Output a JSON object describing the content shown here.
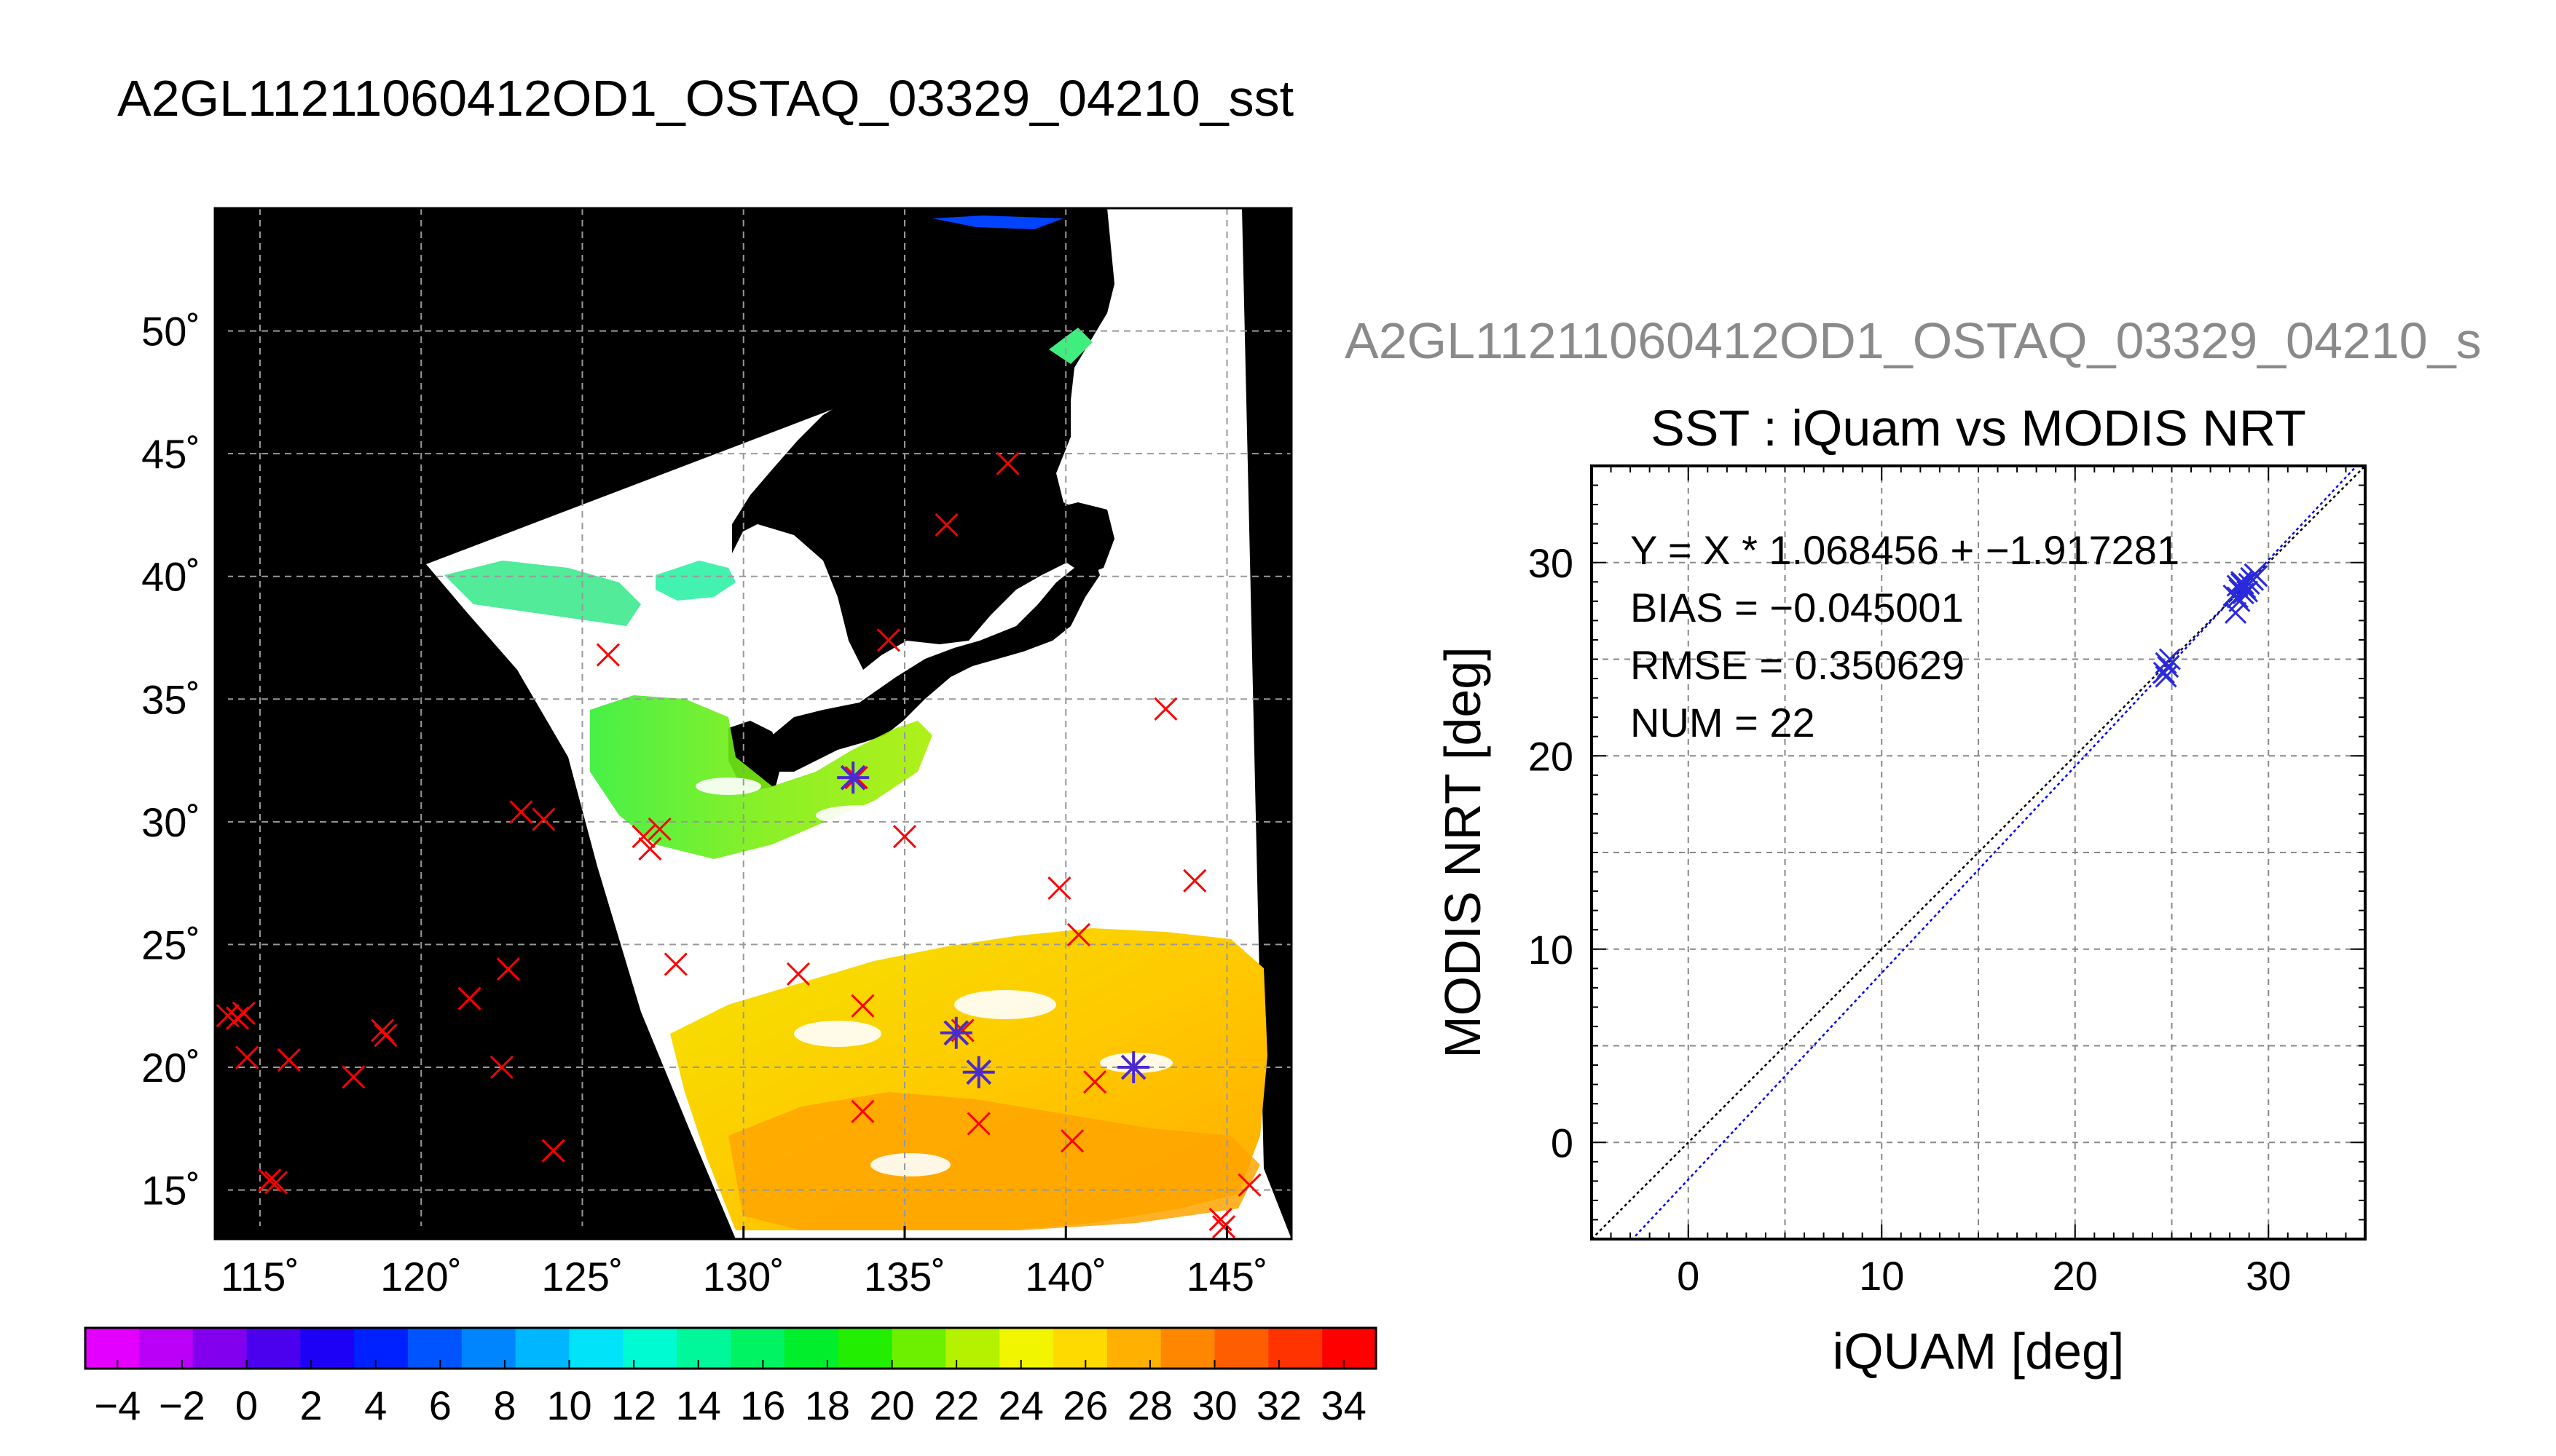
{
  "page": {
    "title": "A2GL11211060412OD1_OSTAQ_03329_04210_sst",
    "scatter_header": "A2GL11211060412OD1_OSTAQ_03329_04210_s"
  },
  "map": {
    "lon_tick_labels": [
      "115˚",
      "120˚",
      "125˚",
      "130˚",
      "135˚",
      "140˚",
      "145˚"
    ],
    "lat_tick_labels": [
      "50˚",
      "45˚",
      "40˚",
      "35˚",
      "30˚",
      "25˚",
      "20˚",
      "15˚"
    ],
    "lon_ticks": [
      115,
      120,
      125,
      130,
      135,
      140,
      145
    ],
    "lat_ticks": [
      50,
      45,
      40,
      35,
      30,
      25,
      20,
      15
    ],
    "lon_range": [
      113.6,
      147.0
    ],
    "lat_range": [
      13.0,
      55.0
    ],
    "colors": {
      "land": "#000000",
      "cloud": "#ffffff",
      "insitu_marker": "#ff0000",
      "matchup_marker": "#4b2bd0"
    },
    "insitu_points": [
      [
        138.2,
        44.6
      ],
      [
        136.3,
        42.1
      ],
      [
        134.5,
        37.4
      ],
      [
        125.8,
        36.8
      ],
      [
        143.1,
        34.6
      ],
      [
        133.5,
        31.8
      ],
      [
        123.1,
        30.4
      ],
      [
        123.8,
        30.1
      ],
      [
        127.4,
        29.7
      ],
      [
        126.9,
        29.4
      ],
      [
        127.1,
        28.9
      ],
      [
        135.0,
        29.4
      ],
      [
        144.0,
        27.6
      ],
      [
        139.8,
        27.3
      ],
      [
        140.4,
        25.4
      ],
      [
        127.9,
        24.2
      ],
      [
        131.7,
        23.8
      ],
      [
        122.7,
        24.0
      ],
      [
        121.5,
        22.8
      ],
      [
        133.7,
        22.5
      ],
      [
        114.0,
        22.1
      ],
      [
        114.3,
        22.0
      ],
      [
        114.5,
        22.2
      ],
      [
        118.9,
        21.3
      ],
      [
        118.8,
        21.5
      ],
      [
        114.6,
        20.4
      ],
      [
        115.9,
        20.3
      ],
      [
        117.9,
        19.6
      ],
      [
        122.5,
        20.0
      ],
      [
        136.8,
        21.5
      ],
      [
        140.9,
        19.4
      ],
      [
        142.1,
        20.0
      ],
      [
        133.7,
        18.2
      ],
      [
        137.3,
        17.7
      ],
      [
        140.2,
        17.0
      ],
      [
        124.1,
        16.6
      ],
      [
        115.3,
        15.4
      ],
      [
        115.5,
        15.3
      ],
      [
        145.7,
        15.2
      ],
      [
        144.8,
        13.8
      ],
      [
        144.9,
        13.5
      ]
    ],
    "matchup_points": [
      [
        133.4,
        31.8
      ],
      [
        136.6,
        21.4
      ],
      [
        137.3,
        19.8
      ],
      [
        142.1,
        20.0
      ]
    ]
  },
  "colorbar": {
    "tick_labels": [
      "−4",
      "−2",
      "0",
      "2",
      "4",
      "6",
      "8",
      "10",
      "12",
      "14",
      "16",
      "18",
      "20",
      "22",
      "24",
      "26",
      "28",
      "30",
      "32",
      "34"
    ],
    "range": [
      -5,
      35
    ],
    "colors": [
      "#e400ff",
      "#bb00f7",
      "#8200ee",
      "#4b00ee",
      "#1d00f6",
      "#0021ff",
      "#0054ff",
      "#0085ff",
      "#00b6ff",
      "#00e3f9",
      "#00fbd2",
      "#00f79a",
      "#00f363",
      "#00ee2c",
      "#21ee00",
      "#6cf000",
      "#b4f200",
      "#f2f500",
      "#ffda00",
      "#ffb000",
      "#ff8700",
      "#ff5e00",
      "#ff3300",
      "#ff0000"
    ]
  },
  "chart_data": {
    "type": "scatter",
    "title": "SST : iQuam vs MODIS NRT",
    "xlabel": "iQUAM [deg]",
    "ylabel": "MODIS NRT [deg]",
    "xlim": [
      -5,
      35
    ],
    "ylim": [
      -5,
      35
    ],
    "x_ticks": [
      0,
      10,
      20,
      30
    ],
    "y_ticks": [
      0,
      10,
      20,
      30
    ],
    "grid": true,
    "annotations": [
      "Y = X * 1.068456 + −1.917281",
      "BIAS = −0.045001",
      "RMSE = 0.350629",
      "NUM = 22"
    ],
    "regression": {
      "slope": 1.068456,
      "intercept": -1.917281
    },
    "colors": {
      "points": "#2a2adc",
      "fit_line": "#0000ff",
      "one_to_one": "#000000"
    },
    "points": [
      [
        24.7,
        24.8
      ],
      [
        24.6,
        24.3
      ],
      [
        24.8,
        24.6
      ],
      [
        24.7,
        24.1
      ],
      [
        24.9,
        25.0
      ],
      [
        28.4,
        28.2
      ],
      [
        28.5,
        28.6
      ],
      [
        28.6,
        28.9
      ],
      [
        28.3,
        27.4
      ],
      [
        28.7,
        28.4
      ],
      [
        28.8,
        28.7
      ],
      [
        29.0,
        28.9
      ],
      [
        29.2,
        29.1
      ],
      [
        29.4,
        29.3
      ],
      [
        28.5,
        28.0
      ],
      [
        28.6,
        29.0
      ],
      [
        28.4,
        28.8
      ],
      [
        28.9,
        28.5
      ],
      [
        29.1,
        29.2
      ],
      [
        28.2,
        28.3
      ],
      [
        29.3,
        29.4
      ],
      [
        28.7,
        28.9
      ]
    ]
  }
}
